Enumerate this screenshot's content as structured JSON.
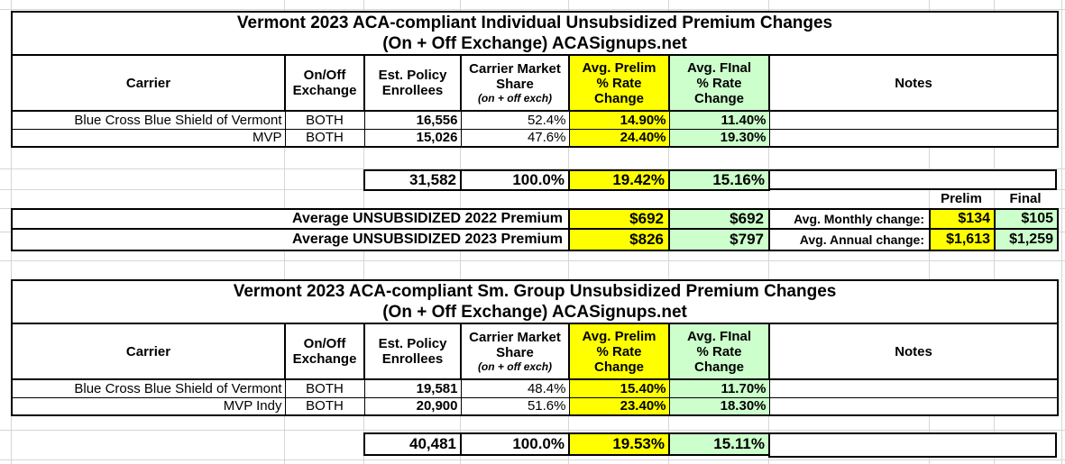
{
  "colors": {
    "prelim_bg": "#FFFF00",
    "final_bg": "#CCFFCC",
    "gridline": "#D6D6D6"
  },
  "table1": {
    "title_line1": "Vermont 2023 ACA-compliant Individual Unsubsidized Premium Changes",
    "title_line2": "(On + Off Exchange) ACASignups.net",
    "headers": {
      "carrier": "Carrier",
      "exchange": "On/Off\nExchange",
      "enrollees": "Est. Policy\nEnrollees",
      "share": "Carrier Market\nShare",
      "share_sub": "(on + off exch)",
      "prelim": "Avg. Prelim\n% Rate\nChange",
      "final": "Avg. FInal\n% Rate Change",
      "notes": "Notes"
    },
    "rows": [
      {
        "carrier": "Blue Cross Blue Shield of Vermont",
        "exchange": "BOTH",
        "enrollees": "16,556",
        "share": "52.4%",
        "prelim": "14.90%",
        "final": "11.40%",
        "notes": ""
      },
      {
        "carrier": "MVP",
        "exchange": "BOTH",
        "enrollees": "15,026",
        "share": "47.6%",
        "prelim": "24.40%",
        "final": "19.30%",
        "notes": ""
      }
    ],
    "totals": {
      "enrollees": "31,582",
      "share": "100.0%",
      "prelim": "19.42%",
      "final": "15.16%",
      "notes": ""
    }
  },
  "summary": {
    "prelim_col_label": "Prelim",
    "final_col_label": "Final",
    "premium_rows": [
      {
        "label": "Average UNSUBSIDIZED 2022 Premium",
        "prelim": "$692",
        "final": "$692"
      },
      {
        "label": "Average UNSUBSIDIZED 2023 Premium",
        "prelim": "$826",
        "final": "$797"
      }
    ],
    "change_rows": [
      {
        "label": "Avg. Monthly change:",
        "prelim": "$134",
        "final": "$105"
      },
      {
        "label": "Avg. Annual change:",
        "prelim": "$1,613",
        "final": "$1,259"
      }
    ]
  },
  "table2": {
    "title_line1": "Vermont 2023 ACA-compliant Sm. Group Unsubsidized Premium Changes",
    "title_line2": "(On + Off Exchange) ACASignups.net",
    "headers": {
      "carrier": "Carrier",
      "exchange": "On/Off\nExchange",
      "enrollees": "Est. Policy\nEnrollees",
      "share": "Carrier Market\nShare",
      "share_sub": "(on + off exch)",
      "prelim": "Avg. Prelim\n% Rate\nChange",
      "final": "Avg. FInal\n% Rate Change",
      "notes": "Notes"
    },
    "rows": [
      {
        "carrier": "Blue Cross Blue Shield of Vermont",
        "exchange": "BOTH",
        "enrollees": "19,581",
        "share": "48.4%",
        "prelim": "15.40%",
        "final": "11.70%",
        "notes": ""
      },
      {
        "carrier": "MVP Indy",
        "exchange": "BOTH",
        "enrollees": "20,900",
        "share": "51.6%",
        "prelim": "23.40%",
        "final": "18.30%",
        "notes": ""
      }
    ],
    "totals": {
      "enrollees": "40,481",
      "share": "100.0%",
      "prelim": "19.53%",
      "final": "15.11%",
      "notes": ""
    }
  }
}
